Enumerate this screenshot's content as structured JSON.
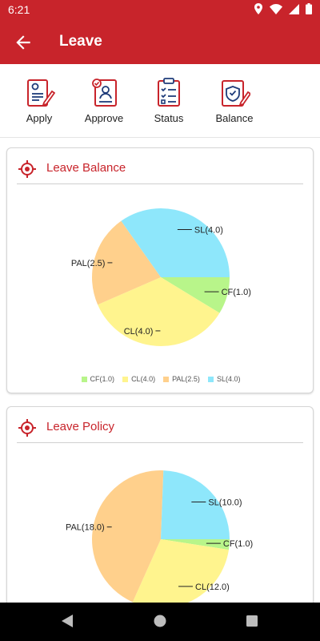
{
  "status_bar": {
    "time": "6:21",
    "icons": [
      "location-icon",
      "wifi-icon",
      "signal-icon",
      "battery-icon"
    ]
  },
  "app_bar": {
    "title": "Leave",
    "back_icon": "arrow-left-icon"
  },
  "actions": [
    {
      "label": "Apply",
      "icon": "apply-form-icon"
    },
    {
      "label": "Approve",
      "icon": "approve-user-icon"
    },
    {
      "label": "Status",
      "icon": "status-checklist-icon"
    },
    {
      "label": "Balance",
      "icon": "balance-shield-icon"
    }
  ],
  "colors": {
    "primary": "#c8242b",
    "cf": "#b8f58a",
    "cl": "#fff48e",
    "pal": "#ffd08c",
    "sl": "#8ee7fb"
  },
  "leave_balance": {
    "title": "Leave Balance",
    "icon": "target-icon",
    "chart_data": {
      "type": "pie",
      "slices": [
        {
          "label": "CF(1.0)",
          "name": "CF",
          "value": 1.0
        },
        {
          "label": "CL(4.0)",
          "name": "CL",
          "value": 4.0
        },
        {
          "label": "PAL(2.5)",
          "name": "PAL",
          "value": 2.5
        },
        {
          "label": "SL(4.0)",
          "name": "SL",
          "value": 4.0
        }
      ],
      "legend": [
        "CF(1.0)",
        "CL(4.0)",
        "PAL(2.5)",
        "SL(4.0)"
      ],
      "legend_position": "bottom"
    }
  },
  "leave_policy": {
    "title": "Leave Policy",
    "icon": "target-icon",
    "chart_data": {
      "type": "pie",
      "slices": [
        {
          "label": "CF(1.0)",
          "name": "CF",
          "value": 1.0
        },
        {
          "label": "CL(12.0)",
          "name": "CL",
          "value": 12.0
        },
        {
          "label": "PAL(18.0)",
          "name": "PAL",
          "value": 18.0
        },
        {
          "label": "SL(10.0)",
          "name": "SL",
          "value": 10.0
        }
      ]
    }
  },
  "nav_bar": {
    "icons": [
      "back-triangle-icon",
      "home-circle-icon",
      "recents-square-icon"
    ]
  }
}
